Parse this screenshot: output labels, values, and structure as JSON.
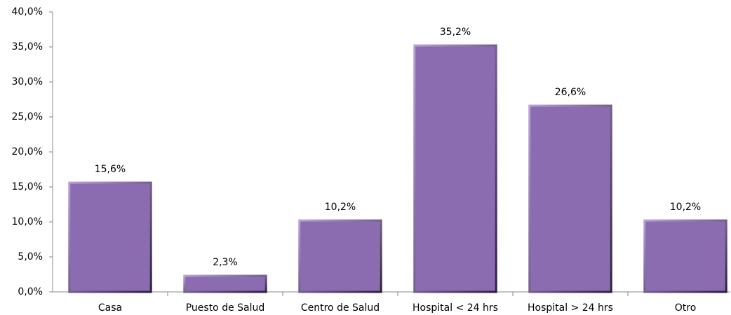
{
  "chart_data": {
    "type": "bar",
    "categories": [
      "Casa",
      "Puesto de Salud",
      "Centro de Salud",
      "Hospital < 24 hrs",
      "Hospital > 24 hrs",
      "Otro"
    ],
    "values": [
      15.6,
      2.3,
      10.2,
      35.2,
      26.6,
      10.2
    ],
    "value_labels": [
      "15,6%",
      "2,3%",
      "10,2%",
      "35,2%",
      "26,6%",
      "10,2%"
    ],
    "color": "#8b6cb0",
    "ylim": [
      0,
      40
    ],
    "yticks": [
      {
        "value": 0,
        "label": "0,0%"
      },
      {
        "value": 5,
        "label": "5,0%"
      },
      {
        "value": 10,
        "label": "10,0%"
      },
      {
        "value": 15,
        "label": "15,0%"
      },
      {
        "value": 20,
        "label": "20,0%"
      },
      {
        "value": 25,
        "label": "25,0%"
      },
      {
        "value": 30,
        "label": "30,0%"
      },
      {
        "value": 35,
        "label": "35,0%"
      },
      {
        "value": 40,
        "label": "40,0%"
      }
    ],
    "grid": false
  }
}
